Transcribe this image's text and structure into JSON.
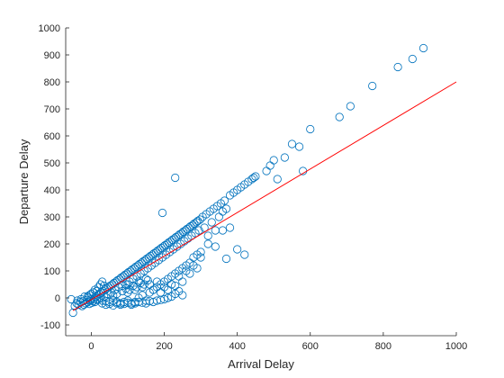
{
  "chart_data": {
    "type": "scatter",
    "title": "",
    "xlabel": "Arrival Delay",
    "ylabel": "Departure Delay",
    "xlim": [
      -70,
      1000
    ],
    "ylim": [
      -140,
      1000
    ],
    "xticks": [
      0,
      200,
      400,
      600,
      800,
      1000
    ],
    "yticks": [
      -100,
      0,
      100,
      200,
      300,
      400,
      500,
      600,
      700,
      800,
      900,
      1000
    ],
    "grid": false,
    "legend": "none",
    "colors": {
      "markers": "#0072BD",
      "fit_line": "#ff0000",
      "axes": "#262626"
    },
    "series": [
      {
        "marker": "open-circle",
        "points": [
          [
            -55,
            -5
          ],
          [
            -50,
            -55
          ],
          [
            -45,
            -30
          ],
          [
            -40,
            -20
          ],
          [
            -38,
            -10
          ],
          [
            -35,
            -25
          ],
          [
            -30,
            -15
          ],
          [
            -28,
            -5
          ],
          [
            -25,
            -30
          ],
          [
            -22,
            -12
          ],
          [
            -20,
            -25
          ],
          [
            -18,
            5
          ],
          [
            -15,
            -20
          ],
          [
            -12,
            -8
          ],
          [
            -10,
            -15
          ],
          [
            -8,
            0
          ],
          [
            -5,
            -22
          ],
          [
            -3,
            -10
          ],
          [
            0,
            -5
          ],
          [
            2,
            -18
          ],
          [
            5,
            -12
          ],
          [
            8,
            -3
          ],
          [
            10,
            -15
          ],
          [
            12,
            5
          ],
          [
            15,
            -8
          ],
          [
            18,
            10
          ],
          [
            20,
            -5
          ],
          [
            22,
            15
          ],
          [
            25,
            0
          ],
          [
            28,
            20
          ],
          [
            30,
            -10
          ],
          [
            32,
            25
          ],
          [
            35,
            5
          ],
          [
            38,
            30
          ],
          [
            40,
            -12
          ],
          [
            42,
            35
          ],
          [
            45,
            15
          ],
          [
            48,
            40
          ],
          [
            50,
            -15
          ],
          [
            52,
            45
          ],
          [
            55,
            20
          ],
          [
            58,
            50
          ],
          [
            60,
            -10
          ],
          [
            62,
            55
          ],
          [
            65,
            30
          ],
          [
            68,
            60
          ],
          [
            70,
            -15
          ],
          [
            72,
            65
          ],
          [
            75,
            40
          ],
          [
            78,
            70
          ],
          [
            80,
            -20
          ],
          [
            82,
            75
          ],
          [
            85,
            45
          ],
          [
            88,
            80
          ],
          [
            90,
            -15
          ],
          [
            92,
            85
          ],
          [
            95,
            50
          ],
          [
            98,
            90
          ],
          [
            100,
            -10
          ],
          [
            102,
            95
          ],
          [
            105,
            60
          ],
          [
            108,
            100
          ],
          [
            110,
            -20
          ],
          [
            112,
            105
          ],
          [
            115,
            70
          ],
          [
            118,
            110
          ],
          [
            120,
            -15
          ],
          [
            122,
            115
          ],
          [
            125,
            80
          ],
          [
            128,
            120
          ],
          [
            130,
            0
          ],
          [
            132,
            125
          ],
          [
            135,
            90
          ],
          [
            138,
            130
          ],
          [
            140,
            10
          ],
          [
            142,
            135
          ],
          [
            145,
            100
          ],
          [
            148,
            140
          ],
          [
            150,
            -10
          ],
          [
            152,
            145
          ],
          [
            155,
            110
          ],
          [
            158,
            150
          ],
          [
            160,
            20
          ],
          [
            162,
            155
          ],
          [
            165,
            120
          ],
          [
            168,
            160
          ],
          [
            170,
            30
          ],
          [
            172,
            165
          ],
          [
            175,
            130
          ],
          [
            178,
            170
          ],
          [
            180,
            40
          ],
          [
            182,
            175
          ],
          [
            185,
            140
          ],
          [
            188,
            180
          ],
          [
            190,
            50
          ],
          [
            192,
            185
          ],
          [
            195,
            150
          ],
          [
            198,
            190
          ],
          [
            200,
            60
          ],
          [
            202,
            195
          ],
          [
            205,
            160
          ],
          [
            208,
            200
          ],
          [
            210,
            70
          ],
          [
            212,
            205
          ],
          [
            215,
            170
          ],
          [
            218,
            210
          ],
          [
            220,
            80
          ],
          [
            222,
            215
          ],
          [
            225,
            180
          ],
          [
            228,
            220
          ],
          [
            230,
            90
          ],
          [
            232,
            225
          ],
          [
            235,
            190
          ],
          [
            238,
            230
          ],
          [
            240,
            100
          ],
          [
            242,
            235
          ],
          [
            245,
            200
          ],
          [
            248,
            240
          ],
          [
            250,
            110
          ],
          [
            252,
            245
          ],
          [
            255,
            210
          ],
          [
            258,
            250
          ],
          [
            260,
            120
          ],
          [
            262,
            255
          ],
          [
            265,
            220
          ],
          [
            268,
            260
          ],
          [
            270,
            130
          ],
          [
            272,
            265
          ],
          [
            275,
            230
          ],
          [
            278,
            270
          ],
          [
            280,
            150
          ],
          [
            282,
            275
          ],
          [
            285,
            240
          ],
          [
            288,
            280
          ],
          [
            290,
            160
          ],
          [
            292,
            285
          ],
          [
            295,
            250
          ],
          [
            298,
            290
          ],
          [
            300,
            170
          ],
          [
            305,
            300
          ],
          [
            310,
            260
          ],
          [
            315,
            310
          ],
          [
            320,
            200
          ],
          [
            325,
            320
          ],
          [
            330,
            280
          ],
          [
            335,
            330
          ],
          [
            340,
            250
          ],
          [
            345,
            340
          ],
          [
            350,
            300
          ],
          [
            355,
            350
          ],
          [
            360,
            320
          ],
          [
            365,
            360
          ],
          [
            370,
            330
          ],
          [
            380,
            380
          ],
          [
            390,
            390
          ],
          [
            400,
            400
          ],
          [
            410,
            410
          ],
          [
            420,
            420
          ],
          [
            430,
            430
          ],
          [
            440,
            440
          ],
          [
            445,
            445
          ],
          [
            450,
            450
          ],
          [
            30,
            -20
          ],
          [
            40,
            -25
          ],
          [
            50,
            -22
          ],
          [
            60,
            -28
          ],
          [
            70,
            -20
          ],
          [
            80,
            -25
          ],
          [
            90,
            -22
          ],
          [
            100,
            -18
          ],
          [
            110,
            -25
          ],
          [
            120,
            -20
          ],
          [
            130,
            -15
          ],
          [
            140,
            -18
          ],
          [
            150,
            -20
          ],
          [
            160,
            -12
          ],
          [
            170,
            -15
          ],
          [
            180,
            -10
          ],
          [
            190,
            -8
          ],
          [
            200,
            -5
          ],
          [
            210,
            0
          ],
          [
            220,
            5
          ],
          [
            230,
            15
          ],
          [
            240,
            25
          ],
          [
            250,
            10
          ],
          [
            100,
            20
          ],
          [
            120,
            30
          ],
          [
            140,
            40
          ],
          [
            160,
            50
          ],
          [
            180,
            60
          ],
          [
            200,
            40
          ],
          [
            220,
            50
          ],
          [
            240,
            80
          ],
          [
            260,
            100
          ],
          [
            280,
            120
          ],
          [
            100,
            50
          ],
          [
            130,
            60
          ],
          [
            150,
            70
          ],
          [
            170,
            30
          ],
          [
            190,
            20
          ],
          [
            210,
            30
          ],
          [
            230,
            45
          ],
          [
            250,
            60
          ],
          [
            270,
            90
          ],
          [
            290,
            110
          ],
          [
            60,
            10
          ],
          [
            70,
            15
          ],
          [
            85,
            25
          ],
          [
            95,
            35
          ],
          [
            105,
            30
          ],
          [
            115,
            45
          ],
          [
            125,
            40
          ],
          [
            135,
            55
          ],
          [
            145,
            50
          ],
          [
            155,
            65
          ],
          [
            20,
            40
          ],
          [
            25,
            50
          ],
          [
            30,
            60
          ],
          [
            35,
            45
          ],
          [
            10,
            30
          ],
          [
            15,
            25
          ],
          [
            5,
            20
          ],
          [
            0,
            15
          ],
          [
            -5,
            10
          ],
          [
            -10,
            5
          ],
          [
            230,
            445
          ],
          [
            195,
            315
          ],
          [
            300,
            150
          ],
          [
            340,
            190
          ],
          [
            370,
            145
          ],
          [
            400,
            180
          ],
          [
            420,
            160
          ],
          [
            360,
            250
          ],
          [
            380,
            260
          ],
          [
            320,
            230
          ],
          [
            480,
            470
          ],
          [
            490,
            490
          ],
          [
            500,
            510
          ],
          [
            510,
            440
          ],
          [
            530,
            520
          ],
          [
            550,
            570
          ],
          [
            570,
            560
          ],
          [
            580,
            470
          ],
          [
            600,
            625
          ],
          [
            680,
            670
          ],
          [
            710,
            710
          ],
          [
            770,
            785
          ],
          [
            840,
            855
          ],
          [
            880,
            885
          ],
          [
            910,
            925
          ]
        ]
      }
    ],
    "fit_line": {
      "x": [
        -50,
        1000
      ],
      "y": [
        -47,
        800
      ]
    }
  }
}
